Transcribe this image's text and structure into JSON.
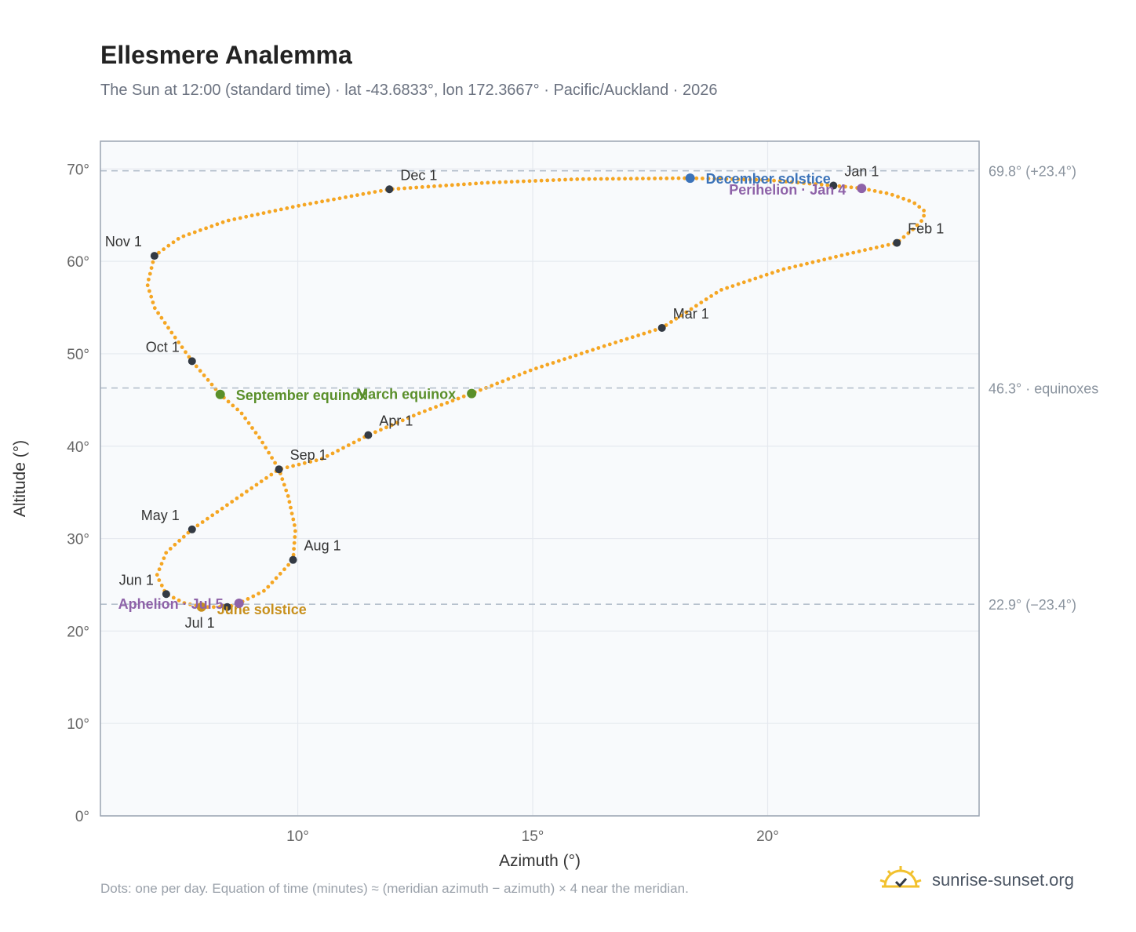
{
  "header": {
    "title": "Ellesmere Analemma",
    "subtitle": "The Sun at 12:00 (standard time) · lat -43.6833°, lon 172.3667° · Pacific/Auckland · 2026"
  },
  "footer": {
    "note": "Dots: one per day. Equation of time (minutes) ≈ (meridian azimuth − azimuth) × 4 near the meridian.",
    "brand": "sunrise-sunset.org",
    "brand_icon": "sun-icon"
  },
  "colors": {
    "curve": "#f5a623",
    "month_marker": "#333a44",
    "equinox": "#5a8f2a",
    "december_solstice": "#3b73b9",
    "june_solstice": "#c8901c",
    "apsis": "#8e62a8",
    "reference_line": "#b4bfcc",
    "plot_bg": "#f8fafc",
    "grid": "#e5e9ef"
  },
  "chart_data": {
    "type": "scatter",
    "xlabel": "Azimuth (°)",
    "ylabel": "Altitude (°)",
    "xlim": [
      5.8,
      24.5
    ],
    "ylim": [
      0,
      73
    ],
    "x_ticks": [
      "10°",
      "15°",
      "20°"
    ],
    "x_tick_values": [
      10,
      15,
      20
    ],
    "y_ticks": [
      "0°",
      "10°",
      "20°",
      "30°",
      "40°",
      "50°",
      "60°",
      "70°"
    ],
    "y_tick_values": [
      0,
      10,
      20,
      30,
      40,
      50,
      60,
      70
    ],
    "grid": true,
    "reference_lines": [
      {
        "y": 69.8,
        "label": "69.8° (+23.4°)"
      },
      {
        "y": 46.3,
        "label": "46.3° · equinoxes"
      },
      {
        "y": 22.9,
        "label": "22.9° (−23.4°)"
      }
    ],
    "month_markers": [
      {
        "label": "Jan 1",
        "az": 21.4,
        "alt": 68.2
      },
      {
        "label": "Feb 1",
        "az": 22.75,
        "alt": 62.0
      },
      {
        "label": "Mar 1",
        "az": 17.75,
        "alt": 52.8
      },
      {
        "label": "Apr 1",
        "az": 11.5,
        "alt": 41.2
      },
      {
        "label": "May 1",
        "az": 7.75,
        "alt": 31.0
      },
      {
        "label": "Jun 1",
        "az": 7.2,
        "alt": 24.0
      },
      {
        "label": "Jul 1",
        "az": 8.5,
        "alt": 22.6
      },
      {
        "label": "Aug 1",
        "az": 9.9,
        "alt": 27.7
      },
      {
        "label": "Sep 1",
        "az": 9.6,
        "alt": 37.5
      },
      {
        "label": "Oct 1",
        "az": 7.75,
        "alt": 49.2
      },
      {
        "label": "Nov 1",
        "az": 6.95,
        "alt": 60.6
      },
      {
        "label": "Dec 1",
        "az": 11.95,
        "alt": 67.8
      }
    ],
    "events": [
      {
        "label": "December solstice",
        "az": 18.35,
        "alt": 69.0,
        "kind": "december_solstice"
      },
      {
        "label": "Perihelion · Jan 4",
        "az": 22.0,
        "alt": 67.9,
        "kind": "apsis"
      },
      {
        "label": "March equinox",
        "az": 13.7,
        "alt": 45.7,
        "kind": "equinox"
      },
      {
        "label": "September equinox",
        "az": 8.35,
        "alt": 45.6,
        "kind": "equinox"
      },
      {
        "label": "June solstice",
        "az": 7.95,
        "alt": 22.6,
        "kind": "june_solstice"
      },
      {
        "label": "Aphelion · Jul 5",
        "az": 8.75,
        "alt": 23.0,
        "kind": "apsis"
      }
    ],
    "path": [
      [
        21.4,
        68.2
      ],
      [
        22.0,
        67.9
      ],
      [
        22.6,
        67.3
      ],
      [
        23.1,
        66.4
      ],
      [
        23.35,
        65.4
      ],
      [
        23.3,
        64.5
      ],
      [
        23.1,
        63.5
      ],
      [
        22.75,
        62.0
      ],
      [
        21.7,
        60.8
      ],
      [
        20.3,
        59.1
      ],
      [
        19.0,
        56.9
      ],
      [
        17.75,
        52.8
      ],
      [
        16.5,
        50.8
      ],
      [
        15.0,
        48.3
      ],
      [
        13.7,
        45.7
      ],
      [
        12.6,
        43.6
      ],
      [
        11.5,
        41.2
      ],
      [
        10.5,
        38.6
      ],
      [
        9.6,
        37.5
      ],
      [
        8.6,
        34.0
      ],
      [
        7.75,
        31.0
      ],
      [
        7.2,
        28.5
      ],
      [
        7.0,
        26.0
      ],
      [
        7.2,
        24.0
      ],
      [
        7.6,
        23.0
      ],
      [
        8.0,
        22.6
      ],
      [
        8.5,
        22.6
      ],
      [
        8.75,
        23.0
      ],
      [
        9.3,
        24.4
      ],
      [
        9.9,
        27.7
      ],
      [
        9.95,
        31.0
      ],
      [
        9.8,
        34.5
      ],
      [
        9.6,
        37.5
      ],
      [
        9.2,
        40.8
      ],
      [
        8.8,
        43.6
      ],
      [
        8.35,
        45.6
      ],
      [
        7.75,
        49.2
      ],
      [
        7.3,
        52.4
      ],
      [
        6.95,
        55.0
      ],
      [
        6.8,
        57.5
      ],
      [
        6.95,
        60.6
      ],
      [
        7.5,
        62.6
      ],
      [
        8.5,
        64.4
      ],
      [
        10.0,
        66.0
      ],
      [
        11.95,
        67.8
      ],
      [
        14.0,
        68.5
      ],
      [
        16.0,
        68.9
      ],
      [
        18.35,
        69.0
      ],
      [
        20.0,
        68.8
      ],
      [
        21.4,
        68.2
      ]
    ]
  }
}
